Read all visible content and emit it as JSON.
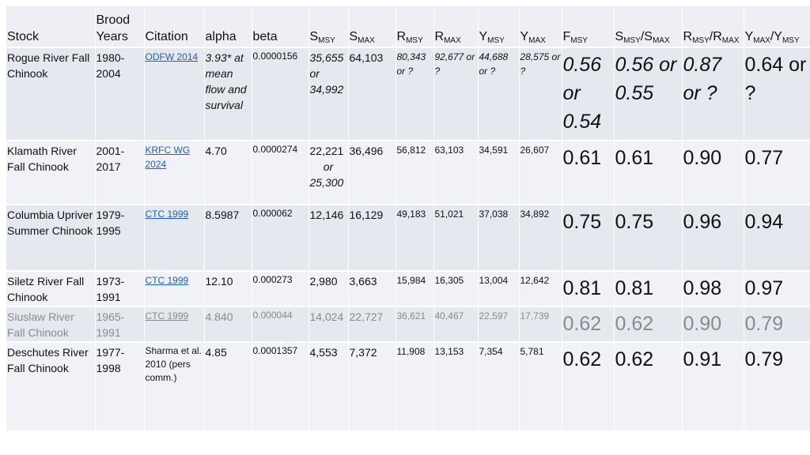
{
  "headers": {
    "stock": "Stock",
    "brood_years": "Brood Years",
    "citation": "Citation",
    "alpha": "alpha",
    "beta": "beta",
    "s": "S",
    "msy": "MSY",
    "max": "MAX",
    "r": "R",
    "y": "Y",
    "f": "F",
    "slash": "/"
  },
  "rows": [
    {
      "stock": "Rogue River Fall Chinook",
      "years": "1980-2004",
      "citation": "ODFW 2014",
      "alpha": "3.93* at mean flow and survival",
      "beta": "0.0000156",
      "smsy": "35,655 or 34,992",
      "smax": "64,103",
      "rmsy": "80,343 or ?",
      "rmax": "92,677 or ?",
      "ymsy": "44,688 or ?",
      "ymax": "28,575 or ?",
      "fmsy": "0.56 or 0.54",
      "smsy_smax": "0.56 or 0.55",
      "rmsy_rmax": "0.87 or ?",
      "ymax_ymsy": "0.64 or ?"
    },
    {
      "stock": "Klamath River Fall Chinook",
      "years": "2001-2017",
      "citation": "KRFC WG 2024",
      "alpha": "4.70",
      "beta": "0.0000274",
      "smsy_a": "22,221",
      "smsy_or": "or",
      "smsy_b": "25,300",
      "smax": "36,496",
      "rmsy": "56,812",
      "rmax": "63,103",
      "ymsy": "34,591",
      "ymax": "26,607",
      "fmsy": "0.61",
      "smsy_smax": "0.61",
      "rmsy_rmax": "0.90",
      "ymax_ymsy": "0.77"
    },
    {
      "stock": "Columbia Upriver Summer Chinook",
      "years": "1979-1995",
      "citation": "CTC 1999",
      "alpha": "8.5987",
      "beta": "0.000062",
      "smsy": "12,146",
      "smax": "16,129",
      "rmsy": "49,183",
      "rmax": "51,021",
      "ymsy": "37,038",
      "ymax": "34,892",
      "fmsy": "0.75",
      "smsy_smax": "0.75",
      "rmsy_rmax": "0.96",
      "ymax_ymsy": "0.94"
    },
    {
      "stock": "Siletz River Fall Chinook",
      "years": "1973-1991",
      "citation": "CTC 1999",
      "alpha": "12.10",
      "beta": "0.000273",
      "smsy": "2,980",
      "smax": "3,663",
      "rmsy": "15,984",
      "rmax": "16,305",
      "ymsy": "13,004",
      "ymax": "12,642",
      "fmsy": "0.81",
      "smsy_smax": "0.81",
      "rmsy_rmax": "0.98",
      "ymax_ymsy": "0.97"
    },
    {
      "stock": "Siuslaw River Fall Chinook",
      "years": "1965-1991",
      "citation": "CTC 1999",
      "alpha": "4.840",
      "beta": "0.000044",
      "smsy": "14,024",
      "smax": "22,727",
      "rmsy": "36,621",
      "rmax": "40,467",
      "ymsy": "22,597",
      "ymax": "17,739",
      "fmsy": "0.62",
      "smsy_smax": "0.62",
      "rmsy_rmax": "0.90",
      "ymax_ymsy": "0.79"
    },
    {
      "stock": "Deschutes River Fall Chinook",
      "years": "1977-1998",
      "citation": "Sharma et al. 2010 (pers comm.)",
      "alpha": "4.85",
      "beta": "0.0001357",
      "smsy": "4,553",
      "smax": "7,372",
      "rmsy": "11,908",
      "rmax": "13,153",
      "ymsy": "7,354",
      "ymax": "5,781",
      "fmsy": "0.62",
      "smsy_smax": "0.62",
      "rmsy_rmax": "0.91",
      "ymax_ymsy": "0.79"
    }
  ]
}
